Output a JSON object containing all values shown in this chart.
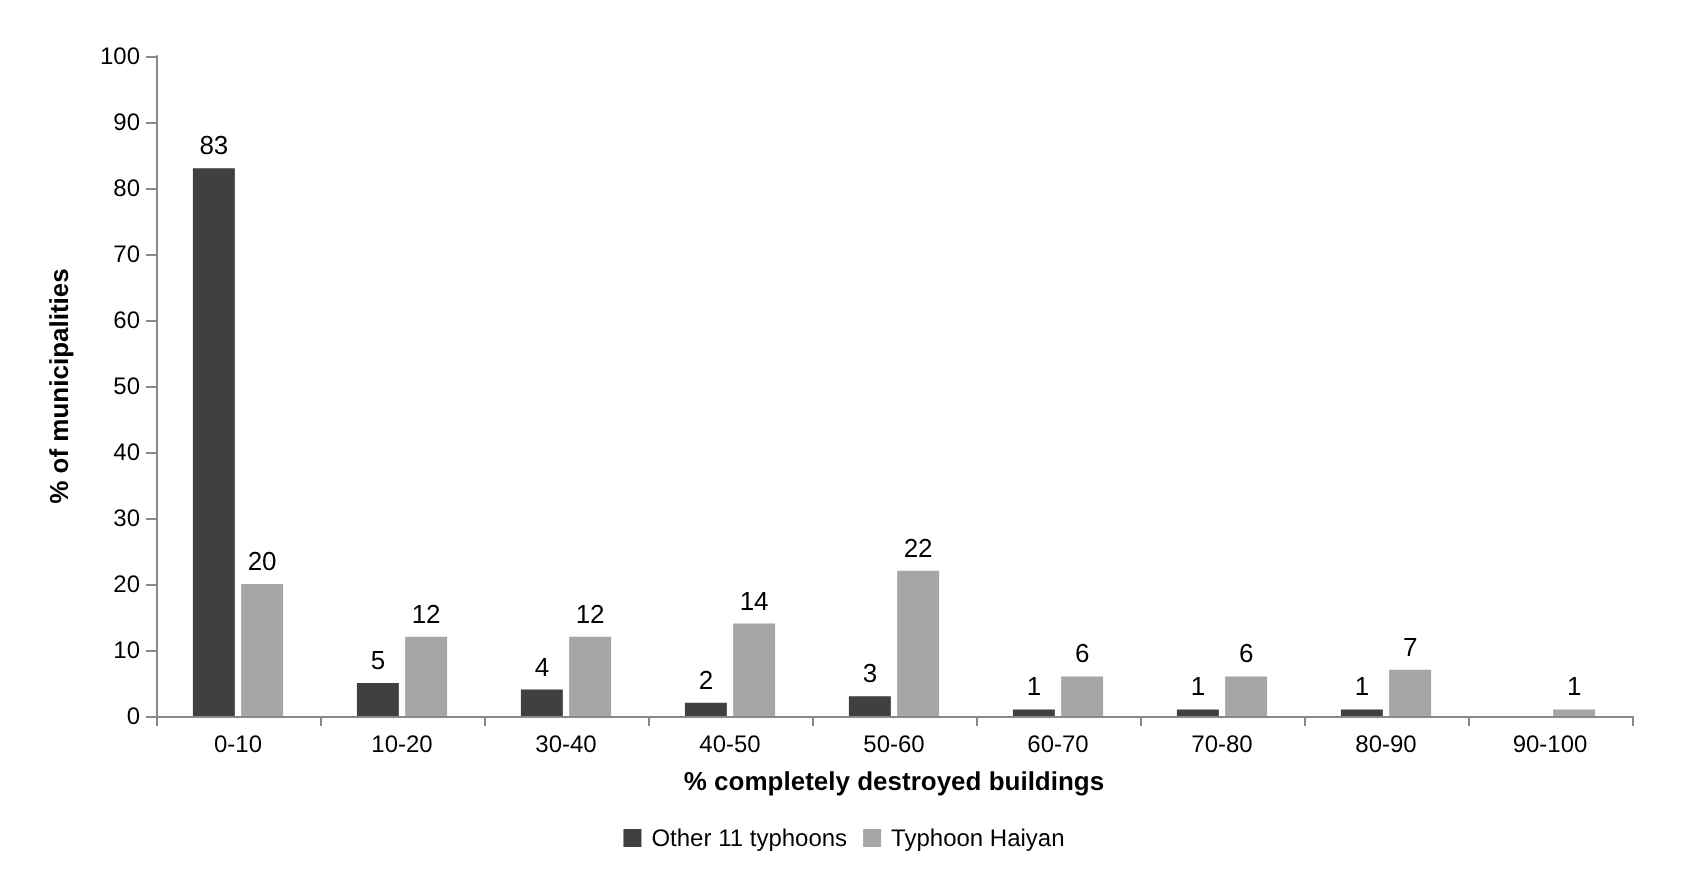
{
  "chart_data": {
    "type": "bar",
    "xlabel": "% completely destroyed buildings",
    "ylabel": "% of municipalities",
    "categories": [
      "0-10",
      "10-20",
      "30-40",
      "40-50",
      "50-60",
      "60-70",
      "70-80",
      "80-90",
      "90-100"
    ],
    "series": [
      {
        "name": "Other 11 typhoons",
        "color": "#404040",
        "values": [
          83,
          5,
          4,
          2,
          3,
          1,
          1,
          1,
          null
        ]
      },
      {
        "name": "Typhoon Haiyan",
        "color": "#a6a6a6",
        "values": [
          20,
          12,
          12,
          14,
          22,
          6,
          6,
          7,
          1
        ]
      }
    ],
    "ylim": [
      0,
      100
    ],
    "yticks": [
      0,
      10,
      20,
      30,
      40,
      50,
      60,
      70,
      80,
      90,
      100
    ],
    "grid": false,
    "legend": "bottom",
    "data_labels": true
  }
}
